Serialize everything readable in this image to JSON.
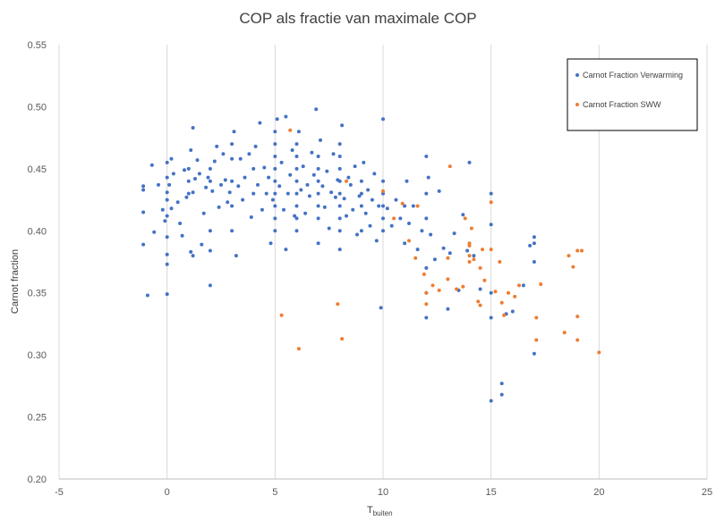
{
  "chart_data": {
    "type": "scatter",
    "title": "COP als fractie van maximale COP",
    "xlabel": "T",
    "xlabel_sub": "buiten",
    "ylabel": "Carnot fraction",
    "xlim": [
      -5,
      25
    ],
    "ylim": [
      0.2,
      0.55
    ],
    "xticks": [
      "-5",
      "0",
      "5",
      "10",
      "15",
      "20",
      "25"
    ],
    "yticks": [
      "0.20",
      "0.25",
      "0.30",
      "0.35",
      "0.40",
      "0.45",
      "0.50",
      "0.55"
    ],
    "grid": "vertical",
    "legend_position": "top-right",
    "series": [
      {
        "name": "Carnot Fraction Verwarming",
        "color": "#4472C4",
        "points": [
          [
            -1.1,
            0.389
          ],
          [
            -1.1,
            0.415
          ],
          [
            -1.1,
            0.433
          ],
          [
            -1.1,
            0.436
          ],
          [
            -0.9,
            0.348
          ],
          [
            -0.7,
            0.453
          ],
          [
            -0.6,
            0.399
          ],
          [
            -0.4,
            0.437
          ],
          [
            -0.2,
            0.417
          ],
          [
            -0.1,
            0.408
          ],
          [
            0,
            0.349
          ],
          [
            0,
            0.373
          ],
          [
            0,
            0.381
          ],
          [
            0,
            0.395
          ],
          [
            0,
            0.412
          ],
          [
            0,
            0.425
          ],
          [
            0,
            0.431
          ],
          [
            0,
            0.443
          ],
          [
            0,
            0.455
          ],
          [
            0.1,
            0.437
          ],
          [
            0.2,
            0.458
          ],
          [
            0.2,
            0.418
          ],
          [
            0.3,
            0.446
          ],
          [
            0.5,
            0.423
          ],
          [
            0.6,
            0.406
          ],
          [
            0.7,
            0.396
          ],
          [
            0.8,
            0.449
          ],
          [
            0.9,
            0.427
          ],
          [
            1.0,
            0.43
          ],
          [
            1.0,
            0.44
          ],
          [
            1.0,
            0.45
          ],
          [
            1.1,
            0.383
          ],
          [
            1.1,
            0.465
          ],
          [
            1.2,
            0.431
          ],
          [
            1.2,
            0.483
          ],
          [
            1.2,
            0.38
          ],
          [
            1.3,
            0.442
          ],
          [
            1.4,
            0.457
          ],
          [
            1.5,
            0.446
          ],
          [
            1.6,
            0.389
          ],
          [
            1.7,
            0.414
          ],
          [
            1.8,
            0.435
          ],
          [
            1.9,
            0.443
          ],
          [
            2.0,
            0.356
          ],
          [
            2.0,
            0.384
          ],
          [
            2.0,
            0.4
          ],
          [
            2.0,
            0.44
          ],
          [
            2.0,
            0.45
          ],
          [
            2.1,
            0.432
          ],
          [
            2.2,
            0.456
          ],
          [
            2.3,
            0.468
          ],
          [
            2.4,
            0.419
          ],
          [
            2.5,
            0.437
          ],
          [
            2.6,
            0.462
          ],
          [
            2.7,
            0.441
          ],
          [
            2.8,
            0.423
          ],
          [
            2.9,
            0.431
          ],
          [
            3.0,
            0.4
          ],
          [
            3.0,
            0.42
          ],
          [
            3.0,
            0.44
          ],
          [
            3.0,
            0.458
          ],
          [
            3.0,
            0.47
          ],
          [
            3.1,
            0.48
          ],
          [
            3.2,
            0.38
          ],
          [
            3.3,
            0.436
          ],
          [
            3.4,
            0.458
          ],
          [
            3.5,
            0.425
          ],
          [
            3.6,
            0.443
          ],
          [
            3.8,
            0.462
          ],
          [
            3.9,
            0.411
          ],
          [
            4.0,
            0.43
          ],
          [
            4.0,
            0.45
          ],
          [
            4.1,
            0.468
          ],
          [
            4.2,
            0.437
          ],
          [
            4.3,
            0.487
          ],
          [
            4.4,
            0.417
          ],
          [
            4.5,
            0.451
          ],
          [
            4.6,
            0.43
          ],
          [
            4.7,
            0.443
          ],
          [
            4.8,
            0.39
          ],
          [
            4.9,
            0.425
          ],
          [
            5.0,
            0.4
          ],
          [
            5.0,
            0.41
          ],
          [
            5.0,
            0.42
          ],
          [
            5.0,
            0.43
          ],
          [
            5.0,
            0.44
          ],
          [
            5.0,
            0.45
          ],
          [
            5.0,
            0.46
          ],
          [
            5.0,
            0.47
          ],
          [
            5.0,
            0.48
          ],
          [
            5.1,
            0.49
          ],
          [
            5.2,
            0.436
          ],
          [
            5.3,
            0.455
          ],
          [
            5.4,
            0.417
          ],
          [
            5.5,
            0.492
          ],
          [
            5.5,
            0.385
          ],
          [
            5.6,
            0.43
          ],
          [
            5.7,
            0.445
          ],
          [
            5.8,
            0.465
          ],
          [
            5.9,
            0.412
          ],
          [
            6.0,
            0.4
          ],
          [
            6.0,
            0.41
          ],
          [
            6.0,
            0.42
          ],
          [
            6.0,
            0.43
          ],
          [
            6.0,
            0.44
          ],
          [
            6.0,
            0.45
          ],
          [
            6.0,
            0.46
          ],
          [
            6.0,
            0.47
          ],
          [
            6.1,
            0.48
          ],
          [
            6.2,
            0.433
          ],
          [
            6.3,
            0.452
          ],
          [
            6.4,
            0.414
          ],
          [
            6.5,
            0.437
          ],
          [
            6.6,
            0.428
          ],
          [
            6.7,
            0.463
          ],
          [
            6.8,
            0.445
          ],
          [
            6.9,
            0.498
          ],
          [
            7.0,
            0.39
          ],
          [
            7.0,
            0.41
          ],
          [
            7.0,
            0.42
          ],
          [
            7.0,
            0.43
          ],
          [
            7.0,
            0.44
          ],
          [
            7.0,
            0.45
          ],
          [
            7.0,
            0.46
          ],
          [
            7.1,
            0.473
          ],
          [
            7.2,
            0.436
          ],
          [
            7.3,
            0.419
          ],
          [
            7.4,
            0.448
          ],
          [
            7.5,
            0.402
          ],
          [
            7.6,
            0.431
          ],
          [
            7.7,
            0.462
          ],
          [
            7.8,
            0.427
          ],
          [
            7.9,
            0.441
          ],
          [
            8.0,
            0.385
          ],
          [
            8.0,
            0.4
          ],
          [
            8.0,
            0.41
          ],
          [
            8.0,
            0.42
          ],
          [
            8.0,
            0.43
          ],
          [
            8.0,
            0.44
          ],
          [
            8.0,
            0.45
          ],
          [
            8.0,
            0.46
          ],
          [
            8.0,
            0.47
          ],
          [
            8.1,
            0.485
          ],
          [
            8.2,
            0.426
          ],
          [
            8.3,
            0.412
          ],
          [
            8.4,
            0.443
          ],
          [
            8.5,
            0.437
          ],
          [
            8.6,
            0.417
          ],
          [
            8.7,
            0.452
          ],
          [
            8.8,
            0.397
          ],
          [
            8.9,
            0.428
          ],
          [
            9.0,
            0.4
          ],
          [
            9.0,
            0.42
          ],
          [
            9.0,
            0.43
          ],
          [
            9.0,
            0.44
          ],
          [
            9.1,
            0.455
          ],
          [
            9.2,
            0.414
          ],
          [
            9.3,
            0.433
          ],
          [
            9.4,
            0.404
          ],
          [
            9.5,
            0.425
          ],
          [
            9.6,
            0.446
          ],
          [
            9.7,
            0.392
          ],
          [
            9.8,
            0.42
          ],
          [
            9.9,
            0.338
          ],
          [
            10.0,
            0.4
          ],
          [
            10.0,
            0.41
          ],
          [
            10.0,
            0.42
          ],
          [
            10.0,
            0.43
          ],
          [
            10.0,
            0.44
          ],
          [
            10.0,
            0.49
          ],
          [
            10.2,
            0.418
          ],
          [
            10.4,
            0.404
          ],
          [
            10.6,
            0.425
          ],
          [
            10.8,
            0.41
          ],
          [
            11.0,
            0.39
          ],
          [
            11.0,
            0.42
          ],
          [
            11.1,
            0.44
          ],
          [
            11.2,
            0.406
          ],
          [
            11.4,
            0.42
          ],
          [
            11.6,
            0.385
          ],
          [
            11.8,
            0.4
          ],
          [
            12.0,
            0.33
          ],
          [
            12.0,
            0.35
          ],
          [
            12.0,
            0.37
          ],
          [
            12.0,
            0.41
          ],
          [
            12.0,
            0.43
          ],
          [
            12.0,
            0.46
          ],
          [
            12.1,
            0.443
          ],
          [
            12.2,
            0.397
          ],
          [
            12.4,
            0.377
          ],
          [
            12.6,
            0.432
          ],
          [
            12.8,
            0.386
          ],
          [
            13.0,
            0.337
          ],
          [
            13.1,
            0.382
          ],
          [
            13.3,
            0.398
          ],
          [
            13.5,
            0.352
          ],
          [
            13.7,
            0.413
          ],
          [
            13.9,
            0.384
          ],
          [
            14.0,
            0.455
          ],
          [
            14.2,
            0.38
          ],
          [
            14.5,
            0.353
          ],
          [
            15.0,
            0.263
          ],
          [
            15.0,
            0.33
          ],
          [
            15.0,
            0.35
          ],
          [
            15.0,
            0.405
          ],
          [
            15.0,
            0.43
          ],
          [
            15.5,
            0.277
          ],
          [
            15.5,
            0.268
          ],
          [
            15.7,
            0.333
          ],
          [
            16.0,
            0.335
          ],
          [
            16.5,
            0.356
          ],
          [
            17.0,
            0.301
          ],
          [
            17.0,
            0.375
          ],
          [
            17.0,
            0.39
          ],
          [
            17.0,
            0.395
          ],
          [
            16.8,
            0.388
          ]
        ]
      },
      {
        "name": "Carnot Fraction SWW",
        "color": "#ED7D31",
        "points": [
          [
            5.3,
            0.332
          ],
          [
            5.7,
            0.481
          ],
          [
            6.1,
            0.305
          ],
          [
            7.9,
            0.341
          ],
          [
            8.1,
            0.313
          ],
          [
            8.3,
            0.44
          ],
          [
            10.0,
            0.432
          ],
          [
            10.5,
            0.41
          ],
          [
            10.9,
            0.422
          ],
          [
            11.2,
            0.392
          ],
          [
            11.5,
            0.378
          ],
          [
            11.6,
            0.42
          ],
          [
            11.9,
            0.365
          ],
          [
            12.0,
            0.341
          ],
          [
            12.0,
            0.35
          ],
          [
            12.3,
            0.356
          ],
          [
            12.6,
            0.352
          ],
          [
            13.0,
            0.378
          ],
          [
            13.0,
            0.361
          ],
          [
            13.1,
            0.452
          ],
          [
            13.4,
            0.353
          ],
          [
            13.7,
            0.355
          ],
          [
            13.8,
            0.41
          ],
          [
            14.0,
            0.39
          ],
          [
            14.0,
            0.388
          ],
          [
            14.0,
            0.38
          ],
          [
            14.0,
            0.375
          ],
          [
            14.1,
            0.402
          ],
          [
            14.2,
            0.377
          ],
          [
            14.4,
            0.343
          ],
          [
            14.5,
            0.34
          ],
          [
            14.5,
            0.37
          ],
          [
            14.6,
            0.385
          ],
          [
            14.7,
            0.36
          ],
          [
            15.0,
            0.385
          ],
          [
            15.0,
            0.423
          ],
          [
            15.2,
            0.351
          ],
          [
            15.4,
            0.375
          ],
          [
            15.5,
            0.342
          ],
          [
            15.6,
            0.332
          ],
          [
            15.8,
            0.35
          ],
          [
            16.1,
            0.347
          ],
          [
            16.3,
            0.356
          ],
          [
            17.1,
            0.33
          ],
          [
            17.1,
            0.312
          ],
          [
            17.3,
            0.357
          ],
          [
            18.4,
            0.318
          ],
          [
            18.6,
            0.38
          ],
          [
            18.8,
            0.371
          ],
          [
            19.0,
            0.384
          ],
          [
            19.0,
            0.331
          ],
          [
            19.0,
            0.312
          ],
          [
            19.2,
            0.384
          ],
          [
            20.0,
            0.302
          ]
        ]
      }
    ]
  }
}
